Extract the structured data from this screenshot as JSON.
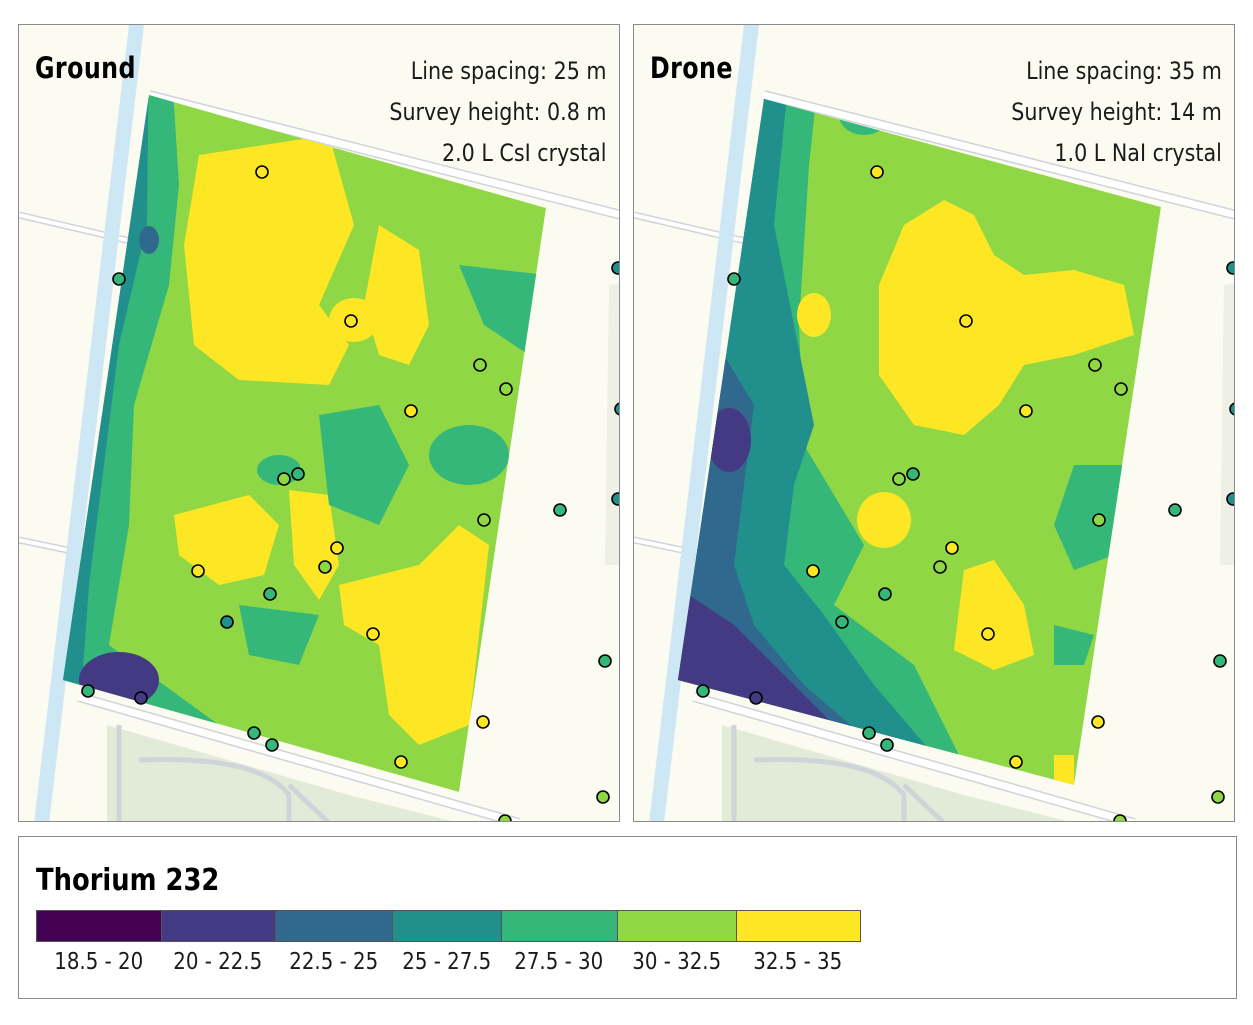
{
  "legend": {
    "title": "Thorium 232",
    "classes": [
      {
        "label": "18.5 - 20",
        "color": "#440154"
      },
      {
        "label": "20 - 22.5",
        "color": "#443a83"
      },
      {
        "label": "22.5 - 25",
        "color": "#31688e"
      },
      {
        "label": "25 - 27.5",
        "color": "#21908d"
      },
      {
        "label": "27.5 - 30",
        "color": "#35b779"
      },
      {
        "label": "30 - 32.5",
        "color": "#8fd744"
      },
      {
        "label": "32.5 - 35",
        "color": "#fde725"
      }
    ]
  },
  "panels": [
    {
      "id": "ground",
      "title": "Ground",
      "line_spacing": "Line spacing: 25 m",
      "survey_height": "Survey height: 0.8 m",
      "crystal": "2.0 L CsI crystal"
    },
    {
      "id": "drone",
      "title": "Drone",
      "line_spacing": "Line spacing: 35 m",
      "survey_height": "Survey height: 14 m",
      "crystal": "1.0 L NaI crystal"
    }
  ],
  "colors": {
    "canal": "#cde7f5",
    "road": "#ffffff",
    "road_edge": "#cfd4d9",
    "land": "#fbfbf1",
    "green_area": "#e2ebd8",
    "marker_outline": "#000000"
  }
}
